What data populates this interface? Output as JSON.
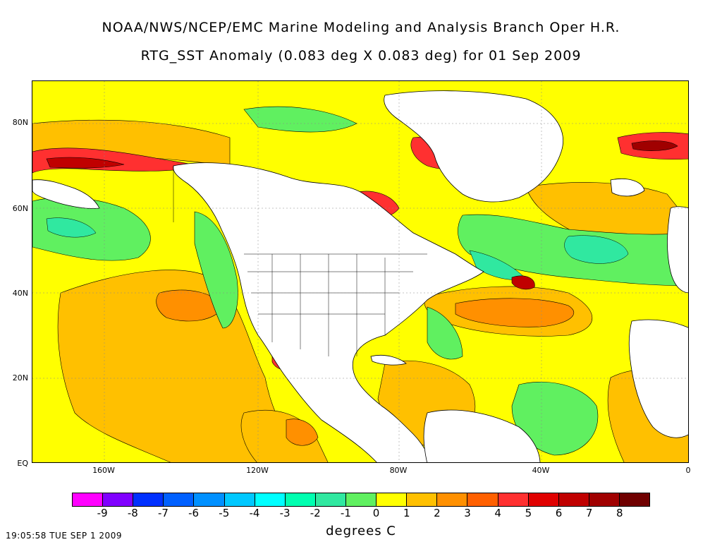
{
  "header": {
    "line1": "NOAA/NWS/NCEP/EMC Marine Modeling and Analysis Branch Oper H.R.",
    "line2": "RTG_SST Anomaly (0.083 deg X 0.083 deg) for 01 Sep 2009"
  },
  "map": {
    "lat_labels": [
      "80N",
      "60N",
      "40N",
      "20N",
      "EQ"
    ],
    "lon_labels": [
      "160W",
      "120W",
      "80W",
      "40W",
      "0"
    ],
    "background_color": "#ffff00",
    "land_color": "#ffffff"
  },
  "legend": {
    "units": "degrees C",
    "labels": [
      "-9",
      "-8",
      "-7",
      "-6",
      "-5",
      "-4",
      "-3",
      "-2",
      "-1",
      "0",
      "1",
      "2",
      "3",
      "4",
      "5",
      "6",
      "7",
      "8"
    ],
    "colors": [
      "#ff00ff",
      "#8000ff",
      "#0030ff",
      "#0060ff",
      "#0090ff",
      "#00c8ff",
      "#00ffff",
      "#00ffb0",
      "#30e8a0",
      "#60f060",
      "#ffff00",
      "#ffc000",
      "#ff9000",
      "#ff6000",
      "#ff3030",
      "#e00000",
      "#c00000",
      "#a00000",
      "#700000"
    ]
  },
  "footer": {
    "timestamp": "19:05:58  TUE SEP 1 2009"
  }
}
